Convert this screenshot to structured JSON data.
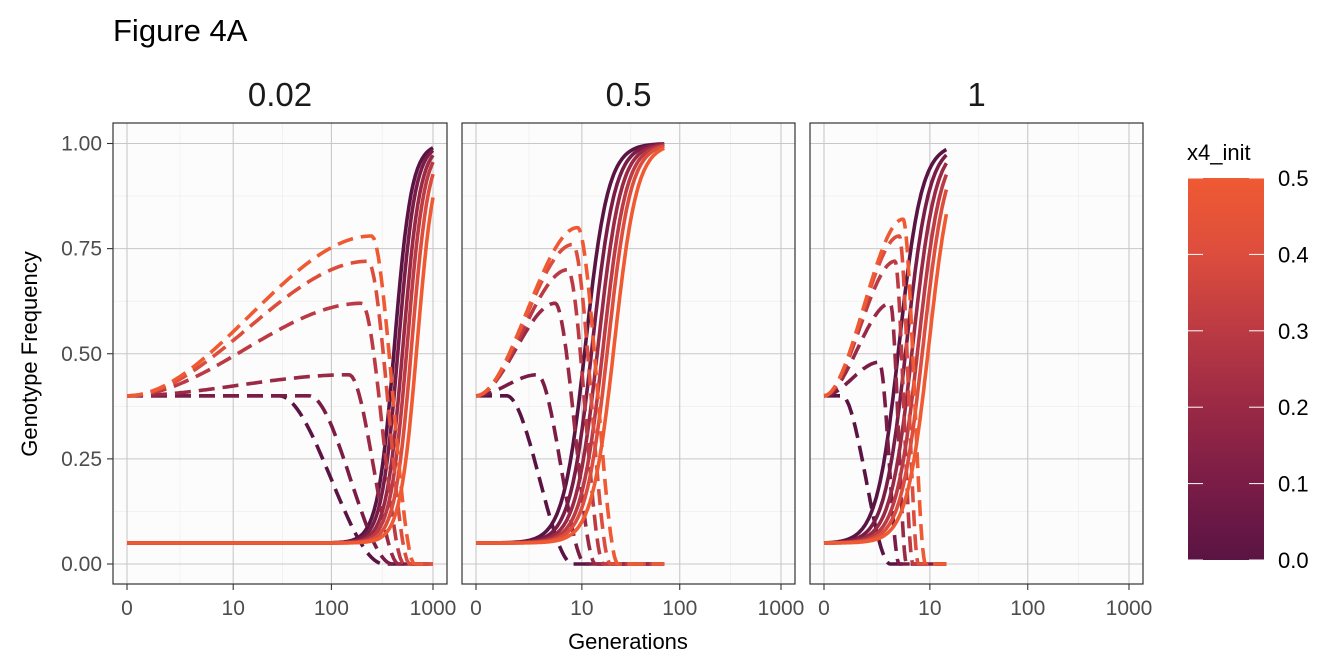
{
  "chart_data": {
    "type": "line",
    "title": "Figure 4A",
    "xlabel": "Generations",
    "ylabel": "Genotype Frequency",
    "x_scale": "log1p",
    "xlim": [
      0,
      1000
    ],
    "ylim": [
      0,
      1
    ],
    "x_ticks": [
      0,
      10,
      100,
      1000
    ],
    "x_tick_labels": [
      "0",
      "10",
      "100",
      "1000"
    ],
    "y_ticks": [
      0,
      0.25,
      0.5,
      0.75,
      1
    ],
    "y_tick_labels": [
      "0.00",
      "0.25",
      "0.50",
      "0.75",
      "1.00"
    ],
    "grid": true,
    "facet_labels": [
      "0.02",
      "0.5",
      "1"
    ],
    "legend": {
      "title": "x4_init",
      "position": "right",
      "type": "colorbar",
      "range": [
        0,
        0.5
      ],
      "ticks": [
        0,
        0.1,
        0.2,
        0.3,
        0.4,
        0.5
      ],
      "tick_labels": [
        "0.0",
        "0.1",
        "0.2",
        "0.3",
        "0.4",
        "0.5"
      ],
      "colors": [
        "#5a1444",
        "#7a1c46",
        "#9a2945",
        "#bb3a43",
        "#dd4d3d",
        "#ef5a33"
      ]
    },
    "series_colors": {
      "low": "#5a1444",
      "high": "#ef5a33"
    },
    "initial_frequencies": {
      "solid": 0.05,
      "dashed": 0.4
    },
    "panels": [
      {
        "label": "0.02",
        "x_end": 1000,
        "series": [
          {
            "x4_init": 0.0,
            "solid_mid": 420,
            "solid_k": 12,
            "dashed_peak": 0.4,
            "dashed_peak_x": 30,
            "dashed_drop_x": 330
          },
          {
            "x4_init": 0.1,
            "solid_mid": 460,
            "solid_k": 12,
            "dashed_peak": 0.4,
            "dashed_peak_x": 60,
            "dashed_drop_x": 400
          },
          {
            "x4_init": 0.2,
            "solid_mid": 510,
            "solid_k": 12,
            "dashed_peak": 0.45,
            "dashed_peak_x": 150,
            "dashed_drop_x": 460
          },
          {
            "x4_init": 0.3,
            "solid_mid": 560,
            "solid_k": 12,
            "dashed_peak": 0.62,
            "dashed_peak_x": 200,
            "dashed_drop_x": 520
          },
          {
            "x4_init": 0.4,
            "solid_mid": 620,
            "solid_k": 12,
            "dashed_peak": 0.72,
            "dashed_peak_x": 230,
            "dashed_drop_x": 590
          },
          {
            "x4_init": 0.5,
            "solid_mid": 700,
            "solid_k": 12,
            "dashed_peak": 0.78,
            "dashed_peak_x": 250,
            "dashed_drop_x": 660
          }
        ]
      },
      {
        "label": "0.5",
        "x_end": 70,
        "series": [
          {
            "x4_init": 0.0,
            "solid_mid": 11,
            "solid_k": 9,
            "dashed_peak": 0.4,
            "dashed_peak_x": 1,
            "dashed_drop_x": 8
          },
          {
            "x4_init": 0.1,
            "solid_mid": 13,
            "solid_k": 9,
            "dashed_peak": 0.45,
            "dashed_peak_x": 3,
            "dashed_drop_x": 11
          },
          {
            "x4_init": 0.2,
            "solid_mid": 15,
            "solid_k": 9,
            "dashed_peak": 0.62,
            "dashed_peak_x": 5,
            "dashed_drop_x": 14
          },
          {
            "x4_init": 0.3,
            "solid_mid": 17,
            "solid_k": 9,
            "dashed_peak": 0.7,
            "dashed_peak_x": 7,
            "dashed_drop_x": 17
          },
          {
            "x4_init": 0.4,
            "solid_mid": 19,
            "solid_k": 9,
            "dashed_peak": 0.76,
            "dashed_peak_x": 8,
            "dashed_drop_x": 20
          },
          {
            "x4_init": 0.5,
            "solid_mid": 22,
            "solid_k": 9,
            "dashed_peak": 0.8,
            "dashed_peak_x": 9,
            "dashed_drop_x": 24
          }
        ]
      },
      {
        "label": "1",
        "x_end": 15,
        "series": [
          {
            "x4_init": 0.0,
            "solid_mid": 4.5,
            "solid_k": 9,
            "dashed_peak": 0.4,
            "dashed_peak_x": 0.5,
            "dashed_drop_x": 3.5
          },
          {
            "x4_init": 0.1,
            "solid_mid": 5.5,
            "solid_k": 9,
            "dashed_peak": 0.48,
            "dashed_peak_x": 2.5,
            "dashed_drop_x": 4.5
          },
          {
            "x4_init": 0.2,
            "solid_mid": 6.5,
            "solid_k": 9,
            "dashed_peak": 0.62,
            "dashed_peak_x": 3.5,
            "dashed_drop_x": 5.5
          },
          {
            "x4_init": 0.3,
            "solid_mid": 7.5,
            "solid_k": 9,
            "dashed_peak": 0.72,
            "dashed_peak_x": 4.0,
            "dashed_drop_x": 6.5
          },
          {
            "x4_init": 0.4,
            "solid_mid": 8.5,
            "solid_k": 9,
            "dashed_peak": 0.78,
            "dashed_peak_x": 4.5,
            "dashed_drop_x": 7.5
          },
          {
            "x4_init": 0.5,
            "solid_mid": 9.8,
            "solid_k": 9,
            "dashed_peak": 0.82,
            "dashed_peak_x": 5.0,
            "dashed_drop_x": 9.0
          }
        ]
      }
    ]
  }
}
